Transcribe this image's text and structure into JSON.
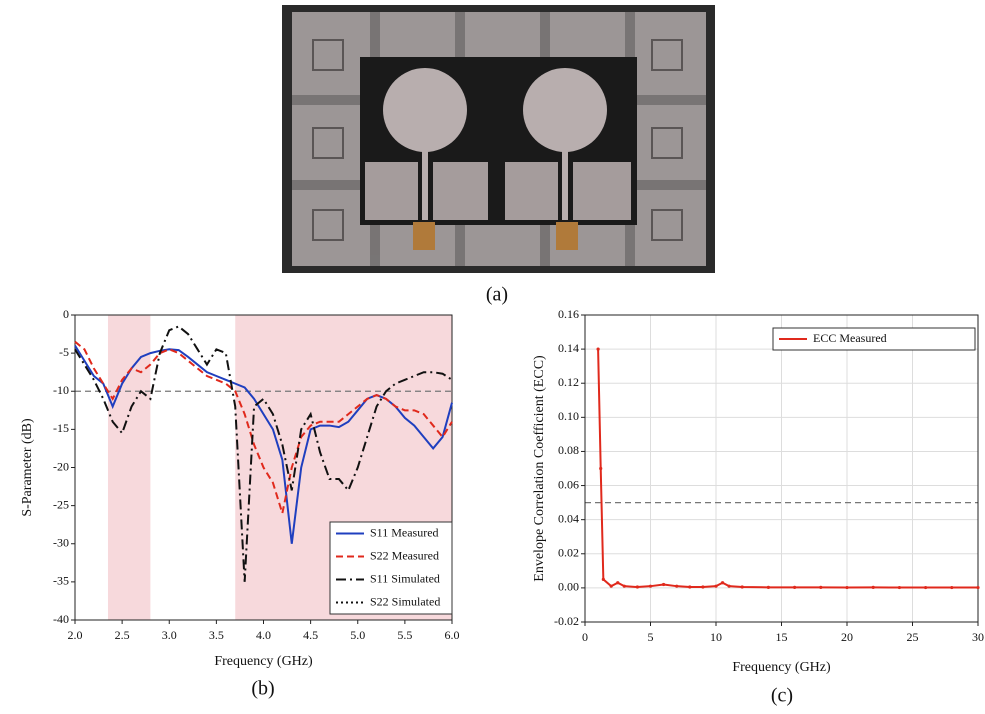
{
  "captions": [
    "(a)",
    "(b)",
    "(c)"
  ],
  "chart_data": [
    {
      "type": "line",
      "x_label": "Frequency (GHz)",
      "y_label": "S-Parameter (dB)",
      "x": [
        2.0,
        2.1,
        2.2,
        2.3,
        2.4,
        2.5,
        2.6,
        2.7,
        2.8,
        2.9,
        3.0,
        3.1,
        3.2,
        3.3,
        3.4,
        3.5,
        3.6,
        3.7,
        3.8,
        3.9,
        4.0,
        4.1,
        4.2,
        4.3,
        4.4,
        4.5,
        4.6,
        4.7,
        4.8,
        4.9,
        5.0,
        5.1,
        5.2,
        5.3,
        5.4,
        5.5,
        5.6,
        5.7,
        5.8,
        5.9,
        6.0
      ],
      "series": [
        {
          "name": "S11 Measured",
          "color": "#1f3fbf",
          "line_style": "solid",
          "values": [
            -4,
            -6,
            -8,
            -9,
            -12,
            -9,
            -7,
            -5.5,
            -5,
            -4.7,
            -4.5,
            -4.6,
            -5.5,
            -6.5,
            -7.5,
            -8,
            -8.5,
            -9,
            -9.5,
            -11,
            -13,
            -15,
            -19,
            -30,
            -20,
            -15,
            -14.5,
            -14.5,
            -14.7,
            -14,
            -12.5,
            -11,
            -10.5,
            -11,
            -12,
            -13.5,
            -14.5,
            -16,
            -17.5,
            -16,
            -11.5
          ]
        },
        {
          "name": "S22 Measured",
          "color": "#e0291c",
          "line_style": "dashed",
          "values": [
            -3.5,
            -4.5,
            -7,
            -9,
            -11,
            -8.5,
            -7,
            -7.5,
            -6.5,
            -5,
            -4.5,
            -5,
            -6,
            -7,
            -8,
            -8.5,
            -9,
            -10,
            -13,
            -17,
            -20,
            -22,
            -26,
            -20,
            -16,
            -14.5,
            -14,
            -14,
            -14,
            -13,
            -12,
            -11,
            -10.5,
            -11,
            -12,
            -12.5,
            -12.5,
            -13,
            -14.5,
            -16,
            -14
          ]
        },
        {
          "name": "S11 Simulated",
          "color": "#111111",
          "line_style": "dashdot",
          "values": [
            -4.5,
            -6.5,
            -8.5,
            -11,
            -14,
            -15.5,
            -12,
            -10,
            -11,
            -5,
            -2,
            -1.5,
            -2.5,
            -4.5,
            -6.5,
            -4.5,
            -5,
            -12,
            -35,
            -12,
            -11,
            -13,
            -17,
            -23,
            -15,
            -13,
            -18,
            -21.5,
            -21.5,
            -23,
            -20,
            -16,
            -12,
            -10,
            -9,
            -8.5,
            -8,
            -7.5,
            -7.5,
            -7.7,
            -8.5
          ]
        },
        {
          "name": "S22 Simulated",
          "color": "#111111",
          "line_style": "dotted",
          "values": [
            null,
            null,
            null,
            null,
            null,
            null,
            null,
            null,
            null,
            null,
            null,
            null,
            null,
            null,
            null,
            null,
            null,
            null,
            null,
            null,
            null,
            null,
            null,
            null,
            null,
            null,
            null,
            null,
            null,
            null,
            null,
            null,
            null,
            null,
            null,
            null,
            null,
            null,
            null,
            null,
            null
          ]
        }
      ],
      "xlim": [
        2.0,
        6.0
      ],
      "xticks": [
        {
          "value": 2,
          "label": "2.0"
        },
        2.5,
        {
          "value": 3,
          "label": "3.0"
        },
        3.5,
        {
          "value": 4,
          "label": "4.0"
        },
        4.5,
        {
          "value": 5,
          "label": "5.0"
        },
        5.5,
        {
          "value": 6,
          "label": "6.0"
        }
      ],
      "ylim": [
        -40,
        0
      ],
      "yticks": [
        -40,
        -35,
        -30,
        -25,
        -20,
        -15,
        -10,
        -5,
        0
      ],
      "grid": false,
      "shaded_ranges": [
        [
          2.35,
          2.8
        ],
        [
          3.7,
          6.0
        ]
      ],
      "shade_color": "#f7d9dc",
      "reference_line": -10,
      "legend": "lower right"
    },
    {
      "type": "line",
      "x_label": "Frequency (GHz)",
      "y_label": "Envelope Correlation Coefficient (ECC)",
      "x": [
        1.0,
        1.2,
        1.4,
        2,
        2.5,
        3,
        4,
        5,
        6,
        7,
        8,
        9,
        10,
        10.5,
        11,
        12,
        14,
        16,
        18,
        20,
        22,
        24,
        26,
        28,
        30
      ],
      "series": [
        {
          "name": "ECC Measured",
          "color": "#e0291c",
          "line_style": "solid",
          "marker": true,
          "values": [
            0.14,
            0.07,
            0.005,
            0.001,
            0.003,
            0.001,
            0.0005,
            0.001,
            0.002,
            0.001,
            0.0005,
            0.0005,
            0.001,
            0.003,
            0.001,
            0.0005,
            0.0003,
            0.0003,
            0.0003,
            0.0002,
            0.0003,
            0.0002,
            0.0002,
            0.0002,
            0.0002
          ]
        }
      ],
      "xlim": [
        0,
        30
      ],
      "xticks": [
        0,
        5,
        10,
        15,
        20,
        25,
        30
      ],
      "ylim": [
        -0.02,
        0.16
      ],
      "yticks": [
        -0.02,
        {
          "value": 0,
          "label": "0.00"
        },
        0.02,
        0.04,
        0.06,
        0.08,
        {
          "value": 0.1,
          "label": "0.10"
        },
        0.12,
        0.14,
        0.16
      ],
      "grid": true,
      "reference_line": 0.05,
      "legend": "upper right"
    }
  ]
}
